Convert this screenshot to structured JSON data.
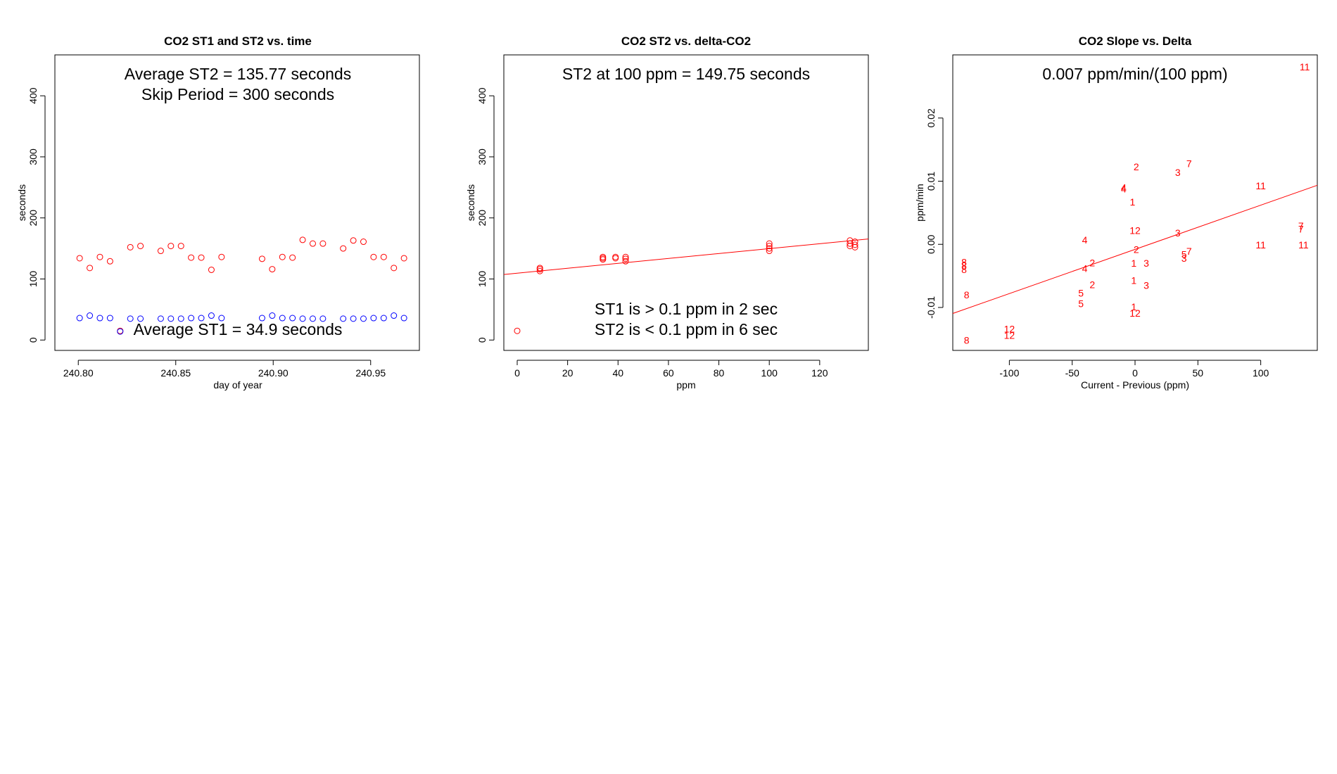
{
  "chart_data": [
    {
      "type": "scatter",
      "title": "CO2 ST1 and ST2 vs. time",
      "xlabel": "day of year",
      "ylabel": "seconds",
      "xlim": [
        240.788,
        240.975
      ],
      "ylim": [
        -17,
        467
      ],
      "xticks": [
        240.8,
        240.85,
        240.9,
        240.95
      ],
      "xtick_labels": [
        "240.80",
        "240.85",
        "240.90",
        "240.95"
      ],
      "yticks": [
        0,
        100,
        200,
        300,
        400
      ],
      "ytick_labels": [
        "0",
        "100",
        "200",
        "300",
        "400"
      ],
      "annotations": [
        "Average ST2 =  135.77  seconds",
        "Skip Period =  300  seconds",
        "Average ST1 =  34.9  seconds"
      ],
      "series": [
        {
          "name": "ST2",
          "color": "#ff0000",
          "marker": "circle",
          "x": [
            240.8007,
            240.8059,
            240.8111,
            240.8163,
            240.8215,
            240.8267,
            240.8319,
            240.8423,
            240.8475,
            240.8527,
            240.8579,
            240.8631,
            240.8683,
            240.8735,
            240.8943,
            240.8995,
            240.9047,
            240.9099,
            240.9151,
            240.9203,
            240.9255,
            240.9359,
            240.9411,
            240.9463,
            240.9515,
            240.9567,
            240.9619,
            240.9671
          ],
          "y": [
            134,
            118,
            136,
            129,
            15,
            152,
            154,
            146,
            154,
            154,
            135,
            135,
            115,
            136,
            133,
            116,
            136,
            135,
            164,
            158,
            158,
            150,
            163,
            161,
            136,
            136,
            118,
            134
          ]
        },
        {
          "name": "ST1",
          "color": "#0000ff",
          "marker": "circle",
          "x": [
            240.8007,
            240.8059,
            240.8111,
            240.8163,
            240.8215,
            240.8267,
            240.8319,
            240.8423,
            240.8475,
            240.8527,
            240.8579,
            240.8631,
            240.8683,
            240.8735,
            240.8943,
            240.8995,
            240.9047,
            240.9099,
            240.9151,
            240.9203,
            240.9255,
            240.9359,
            240.9411,
            240.9463,
            240.9515,
            240.9567,
            240.9619,
            240.9671
          ],
          "y": [
            36,
            40,
            36,
            36,
            14,
            35,
            35,
            35,
            35,
            35,
            36,
            36,
            40,
            36,
            36,
            40,
            36,
            36,
            35,
            35,
            35,
            35,
            35,
            35,
            36,
            36,
            40,
            36
          ]
        }
      ]
    },
    {
      "type": "scatter",
      "title": "CO2 ST2 vs. delta-CO2",
      "xlabel": "ppm",
      "ylabel": "seconds",
      "xlim": [
        -5.3,
        139.3
      ],
      "ylim": [
        -17,
        467
      ],
      "xticks": [
        0,
        20,
        40,
        60,
        80,
        100,
        120
      ],
      "xtick_labels": [
        "0",
        "20",
        "40",
        "60",
        "80",
        "100",
        "120"
      ],
      "yticks": [
        0,
        100,
        200,
        300,
        400
      ],
      "ytick_labels": [
        "0",
        "100",
        "200",
        "300",
        "400"
      ],
      "annotations": [
        "ST2 at 100 ppm =  149.75  seconds",
        "ST1 is > 0.1 ppm in 2 sec",
        "ST2 is < 0.1 ppm in 6 sec"
      ],
      "fit_line": {
        "color": "#ff0000",
        "intercept": 109.5,
        "slope": 0.4025
      },
      "series": [
        {
          "name": "ST2",
          "color": "#ff0000",
          "marker": "circle",
          "x": [
            0,
            9,
            9,
            9,
            34,
            34,
            34,
            39,
            39,
            43,
            43,
            43,
            100,
            100,
            100,
            100,
            132,
            132,
            132,
            134,
            134,
            134
          ],
          "y": [
            15,
            113,
            116,
            118,
            132,
            134,
            136,
            134,
            136,
            129,
            133,
            136,
            146,
            150,
            154,
            158,
            154,
            158,
            163,
            152,
            156,
            161
          ]
        }
      ]
    },
    {
      "type": "scatter",
      "title": "CO2 Slope vs. Delta",
      "xlabel": "Current - Previous (ppm)",
      "ylabel": "ppm/min",
      "xlim": [
        -145,
        145
      ],
      "ylim": [
        -0.0168,
        0.03
      ],
      "xticks": [
        -100,
        -50,
        0,
        50,
        100
      ],
      "xtick_labels": [
        "-100",
        "-50",
        "0",
        "50",
        "100"
      ],
      "yticks": [
        -0.01,
        0.0,
        0.01,
        0.02
      ],
      "ytick_labels": [
        "-0.01",
        "0.00",
        "0.01",
        "0.02"
      ],
      "annotations": [
        "0.007  ppm/min/(100 ppm)"
      ],
      "fit_line": {
        "color": "#ff0000",
        "intercept": -0.0008,
        "slope": 7e-05
      },
      "series": [
        {
          "name": "labeled points",
          "color": "#ff0000",
          "marker": "text",
          "points": [
            {
              "x": 135,
              "y": 0.0281,
              "label": "11"
            },
            {
              "x": 43,
              "y": 0.0128,
              "label": "7"
            },
            {
              "x": 1,
              "y": 0.0123,
              "label": "2"
            },
            {
              "x": 34,
              "y": 0.0114,
              "label": "3"
            },
            {
              "x": -9,
              "y": 0.009,
              "label": "4"
            },
            {
              "x": -9,
              "y": 0.0088,
              "label": "4"
            },
            {
              "x": 100,
              "y": 0.0093,
              "label": "11"
            },
            {
              "x": -2,
              "y": 0.0067,
              "label": "1"
            },
            {
              "x": 0,
              "y": 0.0022,
              "label": "12"
            },
            {
              "x": 34,
              "y": 0.0018,
              "label": "3"
            },
            {
              "x": 132,
              "y": 0.0029,
              "label": "7"
            },
            {
              "x": 132,
              "y": 0.0024,
              "label": "7"
            },
            {
              "x": -40,
              "y": 0.0007,
              "label": "4"
            },
            {
              "x": 100,
              "y": -0.0001,
              "label": "11"
            },
            {
              "x": 134,
              "y": -0.0001,
              "label": "11"
            },
            {
              "x": 1,
              "y": -0.0008,
              "label": "2"
            },
            {
              "x": 43,
              "y": -0.0011,
              "label": "7"
            },
            {
              "x": 39,
              "y": -0.0016,
              "label": "5"
            },
            {
              "x": 39,
              "y": -0.0022,
              "label": "3"
            },
            {
              "x": -136,
              "y": -0.0028,
              "label": "8"
            },
            {
              "x": -136,
              "y": -0.0034,
              "label": "8"
            },
            {
              "x": -136,
              "y": -0.004,
              "label": "8"
            },
            {
              "x": -34,
              "y": -0.0029,
              "label": "2"
            },
            {
              "x": -40,
              "y": -0.0038,
              "label": "4"
            },
            {
              "x": -1,
              "y": -0.003,
              "label": "1"
            },
            {
              "x": 9,
              "y": -0.003,
              "label": "3"
            },
            {
              "x": -1,
              "y": -0.0057,
              "label": "1"
            },
            {
              "x": -34,
              "y": -0.0064,
              "label": "2"
            },
            {
              "x": 9,
              "y": -0.0065,
              "label": "3"
            },
            {
              "x": -134,
              "y": -0.008,
              "label": "8"
            },
            {
              "x": -43,
              "y": -0.0077,
              "label": "5"
            },
            {
              "x": -43,
              "y": -0.0094,
              "label": "5"
            },
            {
              "x": -1,
              "y": -0.0099,
              "label": "1"
            },
            {
              "x": 0,
              "y": -0.0109,
              "label": "12"
            },
            {
              "x": -100,
              "y": -0.0134,
              "label": "12"
            },
            {
              "x": -100,
              "y": -0.0144,
              "label": "12"
            },
            {
              "x": -134,
              "y": -0.0152,
              "label": "8"
            }
          ]
        }
      ]
    }
  ]
}
